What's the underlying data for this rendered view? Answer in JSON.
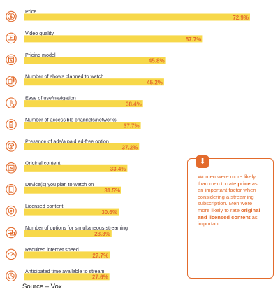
{
  "chart_data": {
    "type": "bar",
    "orientation": "horizontal",
    "categories": [
      "Price",
      "Video quality",
      "Pricing model",
      "Number of shows planned to watch",
      "Ease of use/navigation",
      "Number of accessible channels/networks",
      "Presence of ads/a paid ad-free option",
      "Original content",
      "Device(s) you plan to watch on",
      "Licensed content",
      "Number of options for simultaneous streaming",
      "Required internet speed",
      "Anticipated time available to stream"
    ],
    "values": [
      72.9,
      57.7,
      45.8,
      45.2,
      38.4,
      37.7,
      37.2,
      33.4,
      31.5,
      30.6,
      28.3,
      27.7,
      27.6
    ],
    "value_labels": [
      "72.9%",
      "57.7%",
      "45.8%",
      "45.2%",
      "38.4%",
      "37.7%",
      "37.2%",
      "33.4%",
      "31.5%",
      "30.6%",
      "28.3%",
      "27.7%",
      "27.6%"
    ],
    "icons": [
      "dollar-icon",
      "video-icon",
      "pricing-icon",
      "shows-icon",
      "hand-icon",
      "remote-icon",
      "ad-free-icon",
      "original-content-icon",
      "device-icon",
      "licensed-icon",
      "multi-screen-icon",
      "speed-icon",
      "clock-icon"
    ],
    "xlim": [
      0,
      72.9
    ],
    "bar_color": "#f7d84a",
    "accent_color": "#e36b2c",
    "grid": false
  },
  "callout": {
    "parts": [
      {
        "text": "Women were more likely than men to rate ",
        "bold": false
      },
      {
        "text": "price",
        "bold": true
      },
      {
        "text": " as an important factor when considering a streaming subscription. Men were more likely to rate ",
        "bold": false
      },
      {
        "text": "original and licensed content",
        "bold": true
      },
      {
        "text": " as important.",
        "bold": false
      }
    ]
  },
  "source": "Source – Vox"
}
